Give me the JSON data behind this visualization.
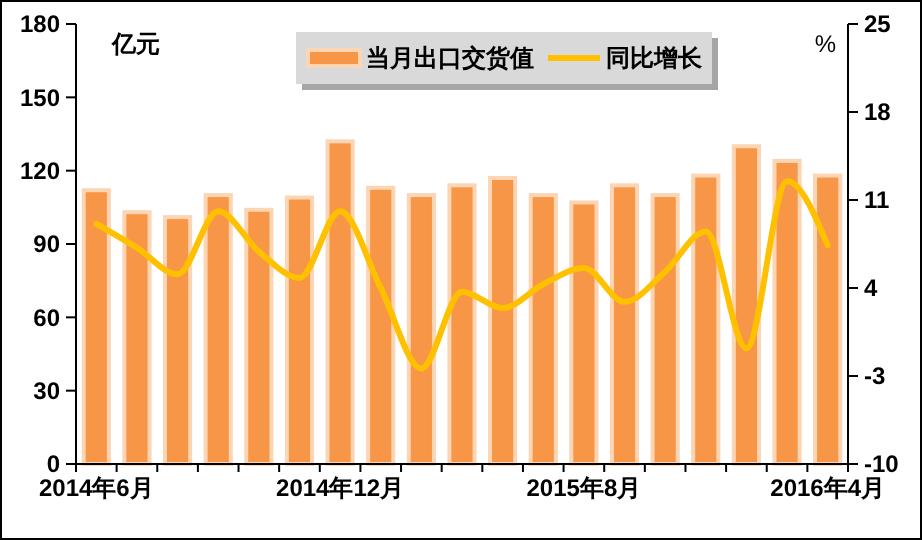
{
  "chart_data": {
    "type": "bar",
    "ylabel": "亿元",
    "y2label": "%",
    "categories": [
      "2014年6月",
      null,
      null,
      null,
      null,
      null,
      "2014年12月",
      null,
      null,
      null,
      null,
      null,
      "2015年8月",
      null,
      null,
      null,
      null,
      null,
      "2016年4月"
    ],
    "series": [
      {
        "name": "当月出口交货值",
        "color": "#f79646",
        "values": [
          112,
          103,
          101,
          110,
          104,
          109,
          132,
          113,
          110,
          114,
          117,
          110,
          107,
          114,
          110,
          118,
          130,
          124,
          118
        ]
      },
      {
        "name": "同比增长",
        "type": "line",
        "axis": "y2",
        "color": "#ffc000",
        "values": [
          9.1,
          7.2,
          5.1,
          10.1,
          6.9,
          4.8,
          10.1,
          4.0,
          -2.4,
          3.7,
          2.4,
          4.3,
          5.6,
          2.9,
          5.3,
          8.5,
          -0.8,
          12.5,
          7.4
        ]
      }
    ],
    "ylim": [
      0,
      180
    ],
    "yticks": [
      0,
      30,
      60,
      90,
      120,
      150,
      180
    ],
    "y2lim": [
      -10,
      25
    ],
    "y2ticks": [
      -10,
      -3,
      4,
      11,
      18,
      25
    ],
    "grid": false,
    "legend": "top",
    "marker": "none",
    "line_style": "solid"
  }
}
